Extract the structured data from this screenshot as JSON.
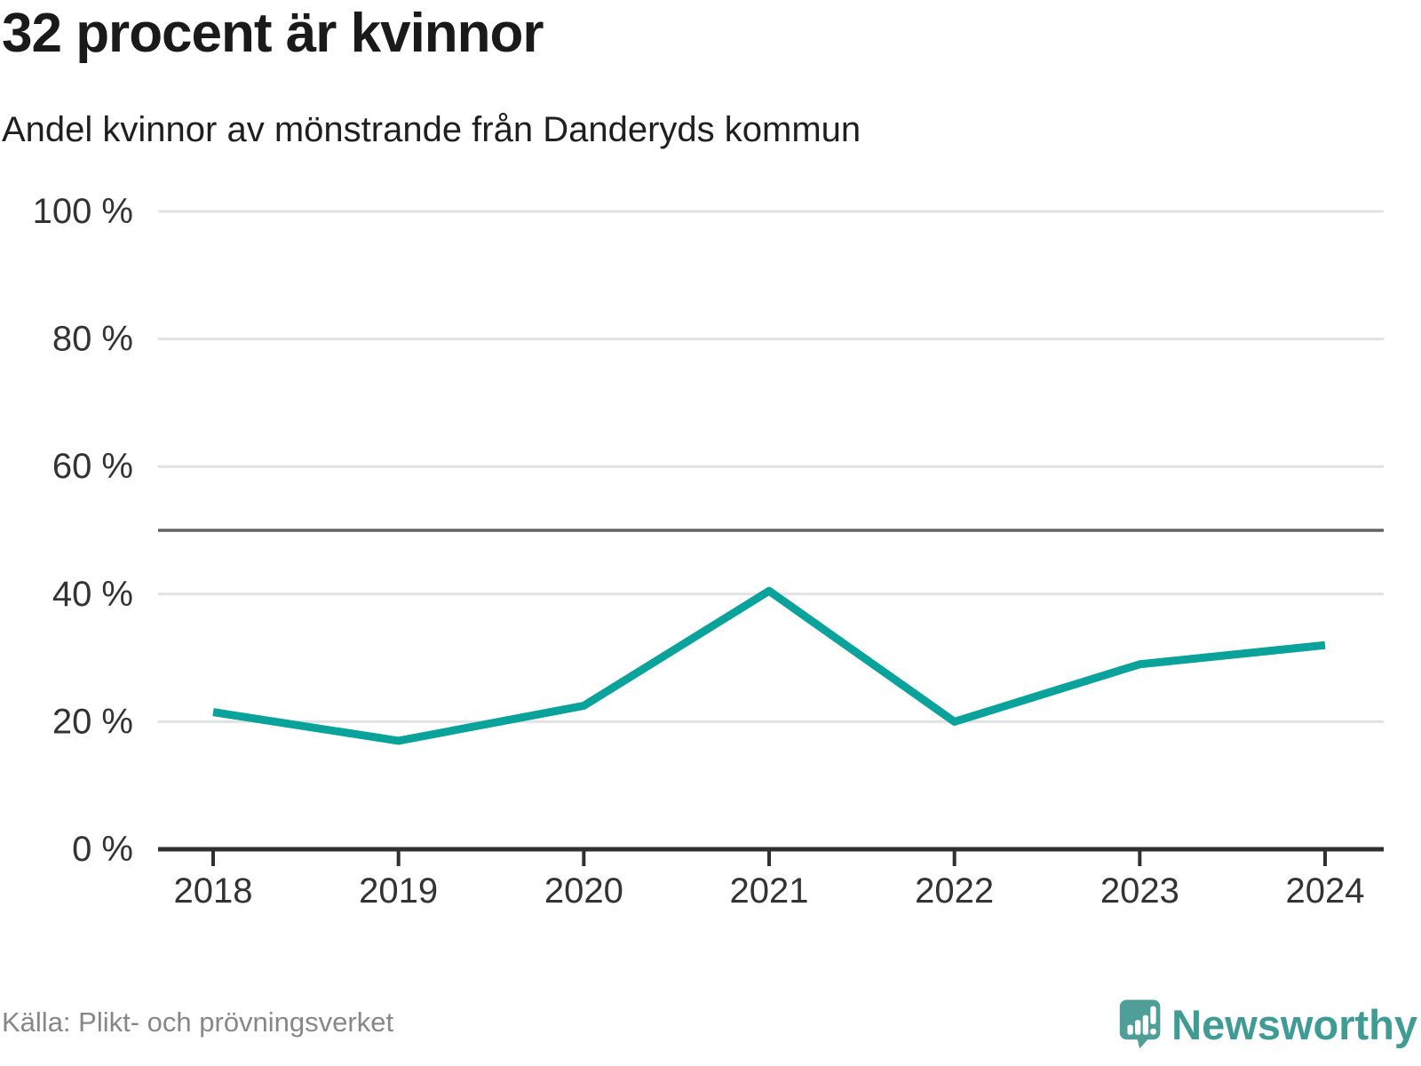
{
  "header": {
    "title": "32 procent är kvinnor",
    "subtitle": "Andel kvinnor av mönstrande från Danderyds kommun"
  },
  "chart_data": {
    "type": "line",
    "title": "32 procent är kvinnor",
    "subtitle": "Andel kvinnor av mönstrande från Danderyds kommun",
    "categories": [
      "2018",
      "2019",
      "2020",
      "2021",
      "2022",
      "2023",
      "2024"
    ],
    "series": [
      {
        "name": "Andel kvinnor av mönstrande",
        "values": [
          21.5,
          17,
          22.5,
          40.5,
          20,
          29,
          32
        ]
      }
    ],
    "ylim": [
      0,
      100
    ],
    "yticks": [
      0,
      20,
      40,
      60,
      80,
      100
    ],
    "ytick_labels": [
      "0 %",
      "20 %",
      "40 %",
      "60 %",
      "80 %",
      "100 %"
    ],
    "reference_line": {
      "value": 50
    },
    "grid": "horizontal",
    "legend": "none",
    "line_color": "#09a39b",
    "grid_color": "#e2e2e2",
    "reference_line_color": "#636363",
    "axis_color": "#303030",
    "tick_label_color": "#333333"
  },
  "footer": {
    "source": "Källa: Plikt- och prövningsverket",
    "logo_text": "Newsworthy"
  },
  "colors": {
    "accent": "#09a39b",
    "logo_icon": "#4f9e97",
    "logo_text": "#3f9c94"
  }
}
